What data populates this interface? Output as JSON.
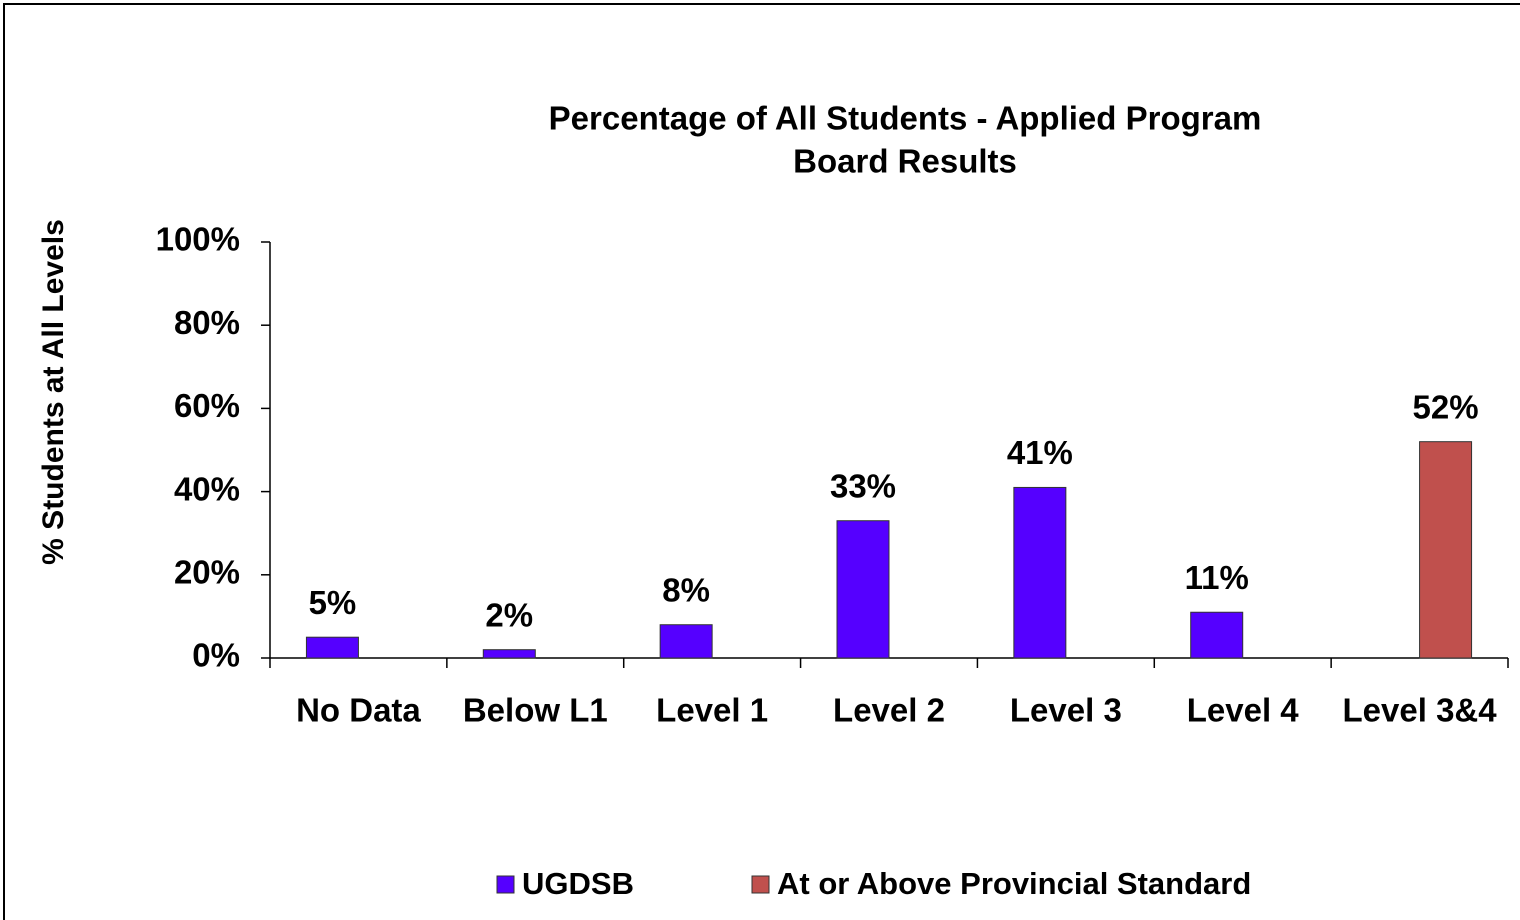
{
  "chart_data": {
    "type": "bar",
    "title": "Percentage of All Students - Applied Program",
    "subtitle": "Board Results",
    "y_label": "% Students at All Levels",
    "categories": [
      "No Data",
      "Below L1",
      "Level 1",
      "Level 2",
      "Level 3",
      "Level 4",
      "Level 3&4"
    ],
    "series": [
      {
        "name": "UGDSB",
        "color": "#5500ff",
        "values": [
          5,
          2,
          8,
          33,
          41,
          11,
          null
        ],
        "value_labels": [
          "5%",
          "2%",
          "8%",
          "33%",
          "41%",
          "11%",
          null
        ]
      },
      {
        "name": "At or Above Provincial Standard",
        "color": "#c0504d",
        "values": [
          null,
          null,
          null,
          null,
          null,
          null,
          52
        ],
        "value_labels": [
          null,
          null,
          null,
          null,
          null,
          null,
          "52%"
        ]
      }
    ],
    "ylim": [
      0,
      100
    ],
    "yticks": [
      {
        "value": 0,
        "label": "0%"
      },
      {
        "value": 20,
        "label": "20%"
      },
      {
        "value": 40,
        "label": "40%"
      },
      {
        "value": 60,
        "label": "60%"
      },
      {
        "value": 80,
        "label": "80%"
      },
      {
        "value": 100,
        "label": "100%"
      }
    ],
    "legend": "bottom"
  }
}
